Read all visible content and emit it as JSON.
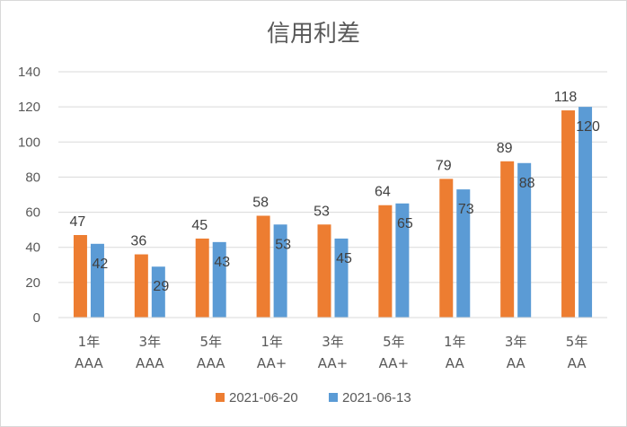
{
  "chart_data": {
    "type": "bar",
    "title": "信用利差",
    "xlabel": "",
    "ylabel": "",
    "categories": [
      [
        "1年",
        "AAA"
      ],
      [
        "3年",
        "AAA"
      ],
      [
        "5年",
        "AAA"
      ],
      [
        "1年",
        "AA+"
      ],
      [
        "3年",
        "AA+"
      ],
      [
        "5年",
        "AA+"
      ],
      [
        "1年",
        "AA"
      ],
      [
        "3年",
        "AA"
      ],
      [
        "5年",
        "AA"
      ]
    ],
    "series": [
      {
        "name": "2021-06-20",
        "color": "#ed7d31",
        "values": [
          47,
          36,
          45,
          58,
          53,
          64,
          79,
          89,
          118
        ]
      },
      {
        "name": "2021-06-13",
        "color": "#5b9bd5",
        "values": [
          42,
          29,
          43,
          53,
          45,
          65,
          73,
          88,
          120
        ]
      }
    ],
    "ylim": [
      0,
      140
    ],
    "yticks": [
      0,
      20,
      40,
      60,
      80,
      100,
      120,
      140
    ],
    "grid": true,
    "legend_position": "bottom"
  }
}
